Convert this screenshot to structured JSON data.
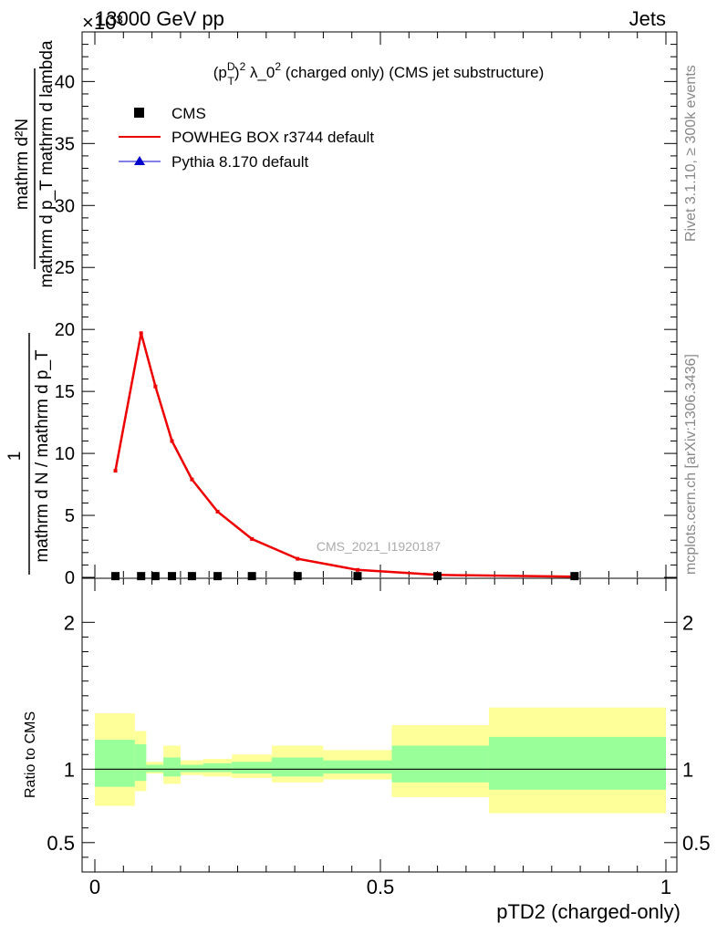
{
  "header": {
    "left": "13000 GeV pp",
    "right": "Jets",
    "exponent": "×10³"
  },
  "side_text": {
    "rivet": "Rivet 3.1.10, ≥ 300k events",
    "mcplots": "mcplots.cern.ch [arXiv:1306.3436]"
  },
  "watermark": "CMS_2021_I1920187",
  "colors": {
    "powheg": "#ee0000",
    "pythia": "#0000cc",
    "cms": "#000000",
    "band_outer": "#ffff99",
    "band_inner": "#99ff99"
  },
  "chart_data": [
    {
      "type": "line",
      "title": "(p_T^D)^2 λ_0^2 (charged only) (CMS jet substructure)",
      "ylabel": "1 / mathrm d N / mathrm d p_T mathrm d N / mathrm d p_T mathrm d lambda",
      "ylabel_lines": {
        "numerator_top": "mathrm d²N",
        "numerator_bottom": "mathrm d p_T mathrm d lambda",
        "denominator": "mathrm d N / mathrm d p_T"
      },
      "y_exponent": 3,
      "xlim": [
        0,
        1
      ],
      "ylim": [
        0,
        44
      ],
      "yticks": [
        0,
        5,
        10,
        15,
        20,
        25,
        30,
        35,
        40
      ],
      "legend": [
        "CMS",
        "POWHEG BOX r3744 default",
        "Pythia 8.170 default"
      ],
      "legend_position": "top-left",
      "x": [
        0.036,
        0.081,
        0.106,
        0.135,
        0.17,
        0.215,
        0.275,
        0.355,
        0.46,
        0.6,
        0.84
      ],
      "series": [
        {
          "name": "CMS",
          "values": [
            0.1,
            0.1,
            0.1,
            0.1,
            0.1,
            0.1,
            0.1,
            0.1,
            0.1,
            0.1,
            0.1
          ]
        },
        {
          "name": "POWHEG BOX r3744 default",
          "values": [
            8.6,
            19.7,
            15.4,
            11.0,
            7.9,
            5.3,
            3.1,
            1.5,
            0.6,
            0.2,
            0.05
          ]
        }
      ]
    },
    {
      "type": "area",
      "ylabel": "Ratio to CMS",
      "xlabel": "pTD2 (charged-only)",
      "xlim": [
        0,
        1
      ],
      "ylim": [
        0.3,
        2.3
      ],
      "yticks": [
        0.5,
        1,
        2
      ],
      "xticks": [
        0,
        0.5,
        1
      ],
      "bins": [
        {
          "x0": 0.0,
          "x1": 0.07,
          "outer": [
            0.75,
            1.38
          ],
          "inner": [
            0.88,
            1.2
          ]
        },
        {
          "x0": 0.07,
          "x1": 0.09,
          "outer": [
            0.85,
            1.26
          ],
          "inner": [
            0.92,
            1.17
          ]
        },
        {
          "x0": 0.09,
          "x1": 0.12,
          "outer": [
            0.97,
            1.05
          ],
          "inner": [
            0.98,
            1.03
          ]
        },
        {
          "x0": 0.12,
          "x1": 0.15,
          "outer": [
            0.9,
            1.16
          ],
          "inner": [
            0.95,
            1.08
          ]
        },
        {
          "x0": 0.15,
          "x1": 0.19,
          "outer": [
            0.96,
            1.06
          ],
          "inner": [
            0.98,
            1.03
          ]
        },
        {
          "x0": 0.19,
          "x1": 0.24,
          "outer": [
            0.95,
            1.07
          ],
          "inner": [
            0.98,
            1.04
          ]
        },
        {
          "x0": 0.24,
          "x1": 0.31,
          "outer": [
            0.94,
            1.1
          ],
          "inner": [
            0.97,
            1.05
          ]
        },
        {
          "x0": 0.31,
          "x1": 0.4,
          "outer": [
            0.91,
            1.16
          ],
          "inner": [
            0.95,
            1.08
          ]
        },
        {
          "x0": 0.4,
          "x1": 0.52,
          "outer": [
            0.93,
            1.13
          ],
          "inner": [
            0.97,
            1.06
          ]
        },
        {
          "x0": 0.52,
          "x1": 0.69,
          "outer": [
            0.81,
            1.3
          ],
          "inner": [
            0.91,
            1.16
          ]
        },
        {
          "x0": 0.69,
          "x1": 1.0,
          "outer": [
            0.7,
            1.42
          ],
          "inner": [
            0.86,
            1.22
          ]
        }
      ],
      "reference_line": 1
    }
  ]
}
